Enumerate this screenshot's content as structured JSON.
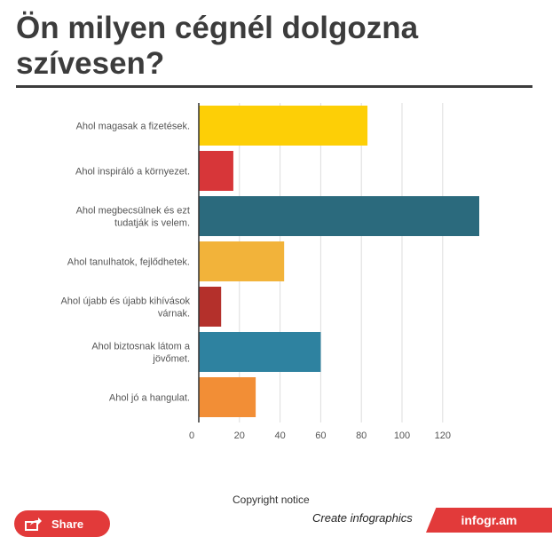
{
  "header": {
    "title_line1": "Ön milyen cégnél dolgozna",
    "title_line2": "szívesen?"
  },
  "chart_data": {
    "type": "bar",
    "orientation": "horizontal",
    "categories": [
      [
        "Ahol magasak a fizetések."
      ],
      [
        "Ahol inspiráló a környezet."
      ],
      [
        "Ahol megbecsülnek és ezt",
        "tudatják is velem."
      ],
      [
        "Ahol tanulhatok, fejlődhetek."
      ],
      [
        "Ahol újabb és újabb kihívások",
        "várnak."
      ],
      [
        "Ahol biztosnak látom a",
        "jövőmet."
      ],
      [
        "Ahol jó a hangulat."
      ]
    ],
    "values": [
      83,
      17,
      138,
      42,
      11,
      60,
      28
    ],
    "colors": [
      "#fdcf06",
      "#d73639",
      "#2b6a7d",
      "#f2b33a",
      "#b4302b",
      "#2e82a0",
      "#f28e36"
    ],
    "xlim": [
      0,
      140
    ],
    "xticks": [
      "0",
      "20",
      "40",
      "60",
      "80",
      "100",
      "120"
    ],
    "grid": true
  },
  "footer": {
    "copyright": "Copyright notice",
    "share_label": "Share",
    "create_label": "Create infographics",
    "brand_label": "infogr.am"
  }
}
